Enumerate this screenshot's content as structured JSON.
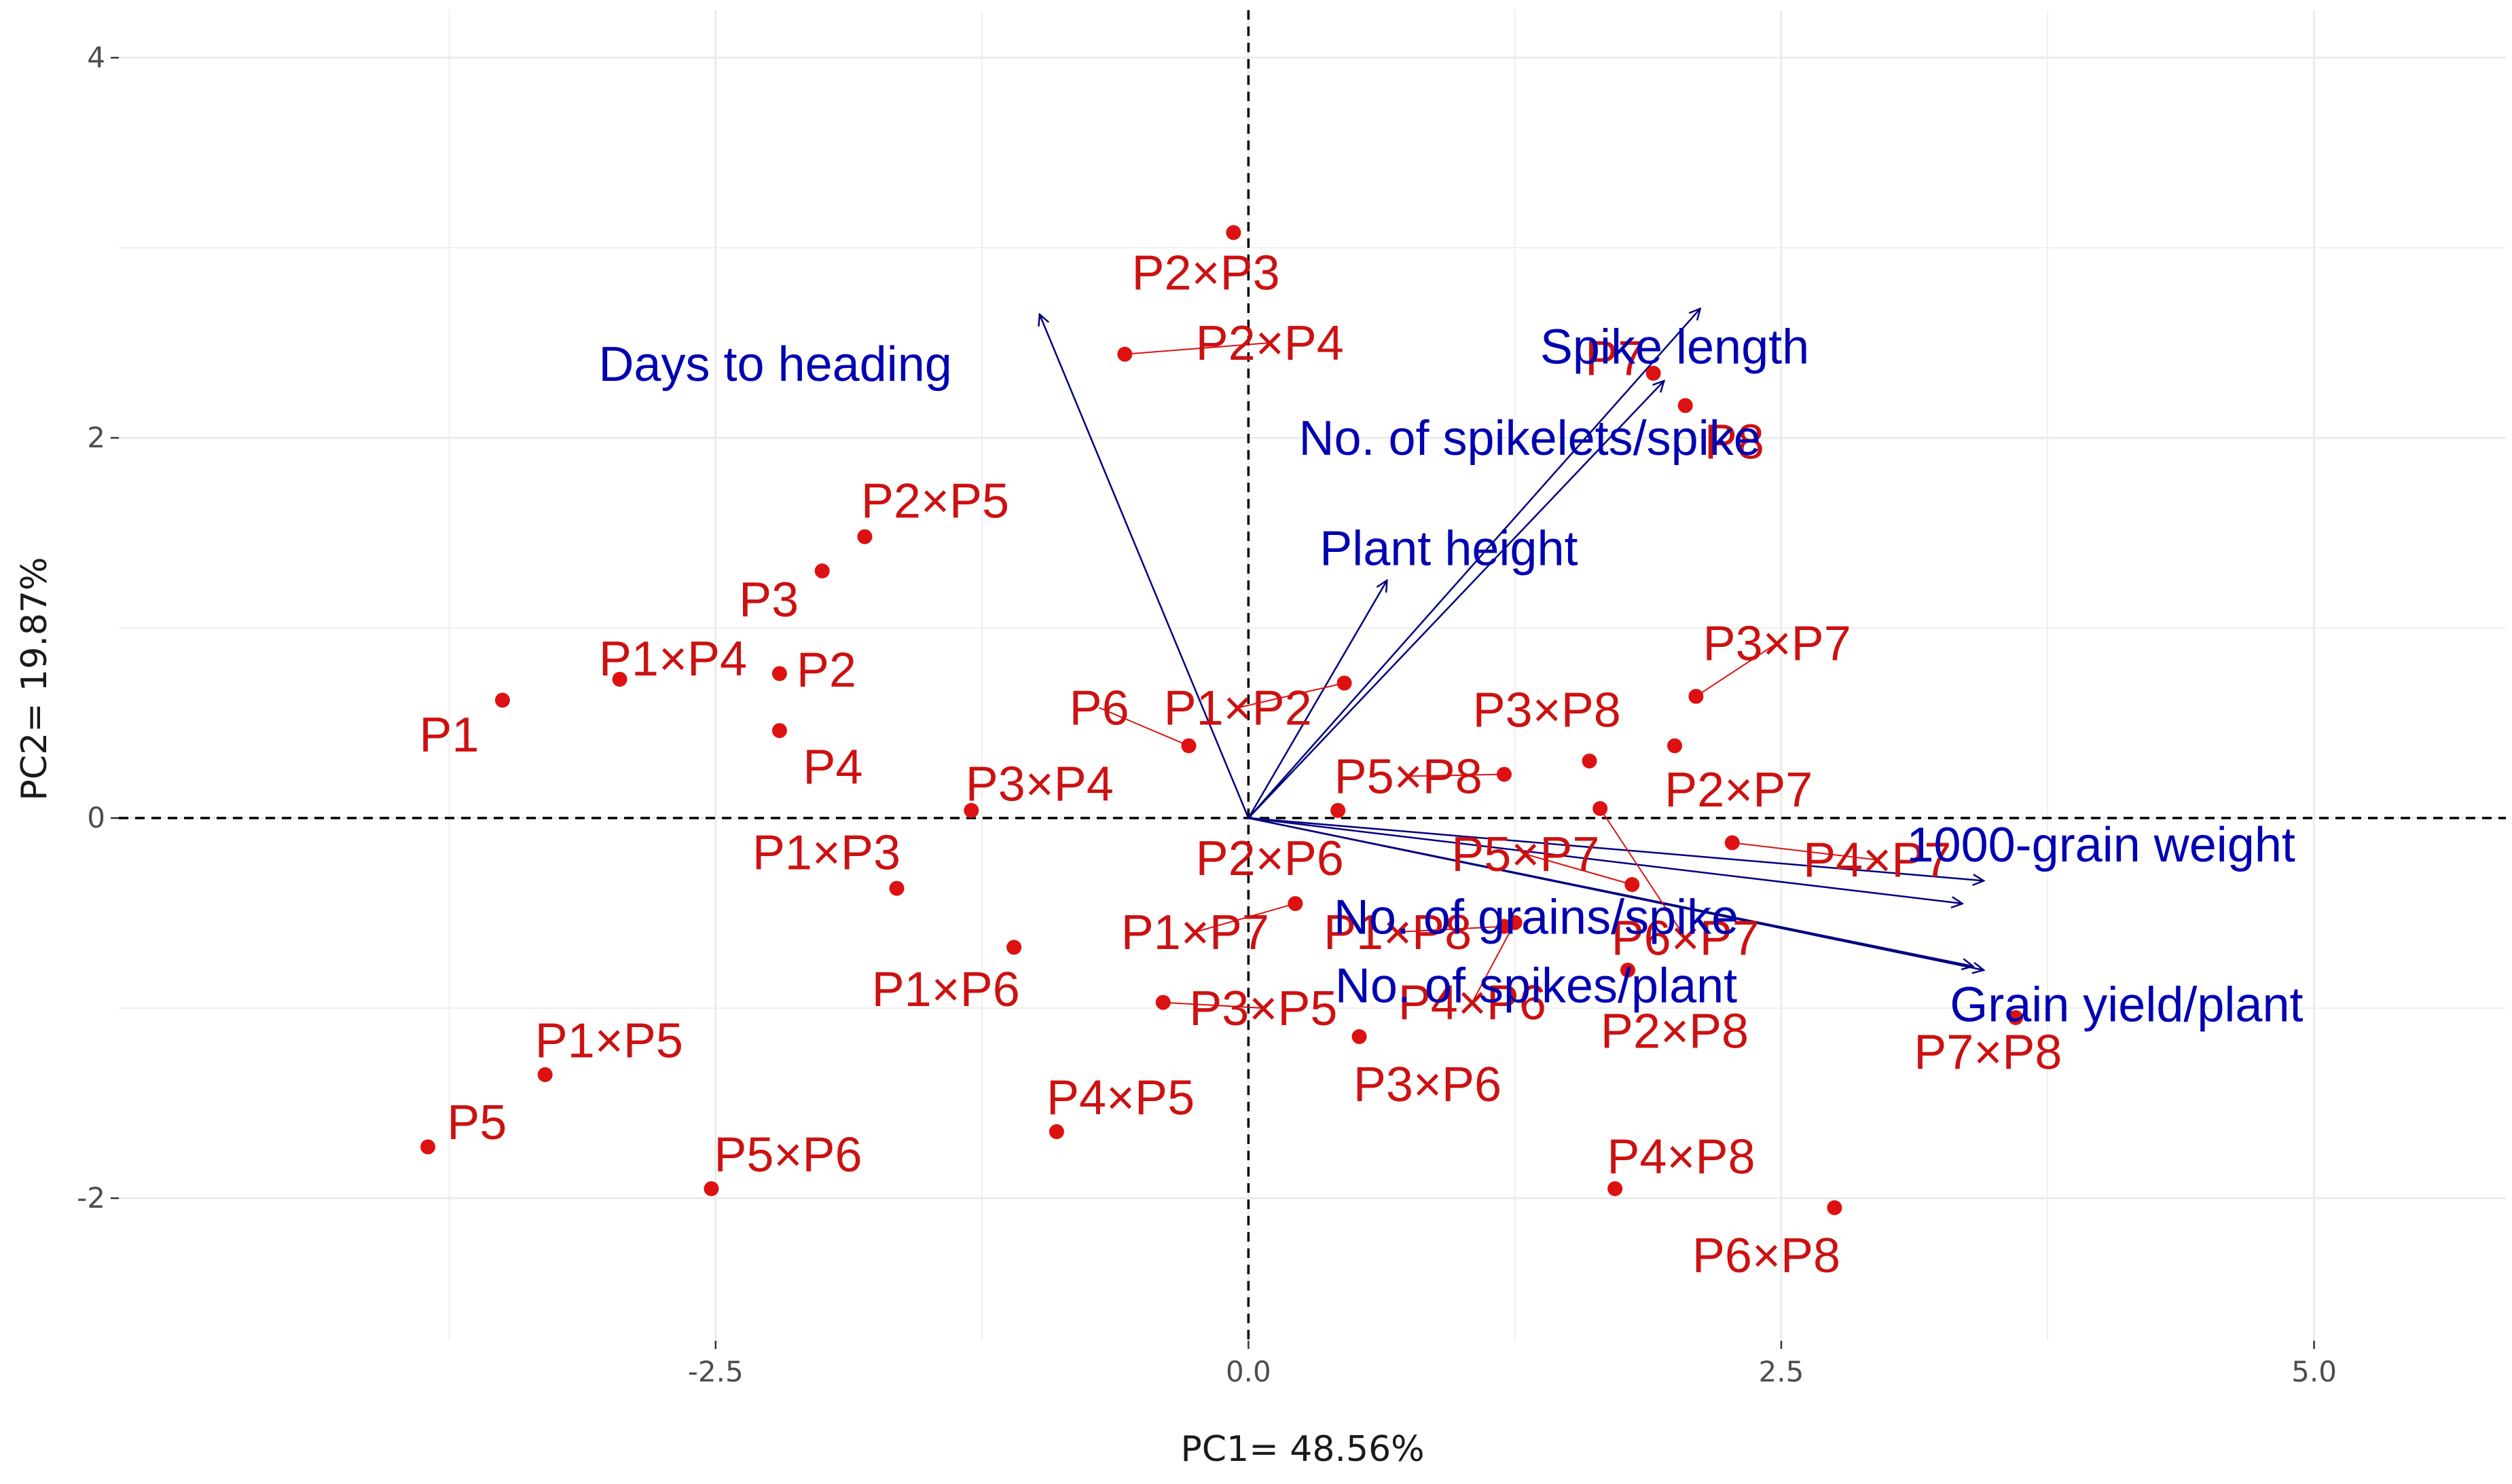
{
  "chart_data": {
    "type": "scatter",
    "subtype": "pca-biplot",
    "title": "",
    "xlabel": "PC1= 48.56%",
    "ylabel": "PC2= 19.87%",
    "xlim": [
      -5.3,
      5.9
    ],
    "ylim": [
      -2.75,
      4.25
    ],
    "xticks": [
      -2.5,
      0.0,
      2.5,
      5.0
    ],
    "xtick_labels": [
      "-2.5",
      "0.0",
      "2.5",
      "5.0"
    ],
    "yticks": [
      -2,
      0,
      2,
      4
    ],
    "ytick_labels": [
      "-2",
      "0",
      "2",
      "4"
    ],
    "grid": true,
    "reference_lines": {
      "x": 0,
      "y": 0,
      "style": "dashed"
    },
    "colors": {
      "points": "#dd1111",
      "point_labels": "#cc1111",
      "vectors": "#000080",
      "vector_labels": "#0000b3",
      "grid": "#ebebeb"
    },
    "points": [
      {
        "label": "P1",
        "x": -3.5,
        "y": 0.62,
        "lx": -3.75,
        "ly": 0.44
      },
      {
        "label": "P2",
        "x": -2.2,
        "y": 0.76,
        "lx": -1.98,
        "ly": 0.78
      },
      {
        "label": "P3",
        "x": -2.0,
        "y": 1.3,
        "lx": -2.25,
        "ly": 1.15
      },
      {
        "label": "P4",
        "x": -2.2,
        "y": 0.46,
        "lx": -1.95,
        "ly": 0.27
      },
      {
        "label": "P5",
        "x": -3.85,
        "y": -1.73,
        "lx": -3.62,
        "ly": -1.6
      },
      {
        "label": "P6",
        "x": -0.28,
        "y": 0.38,
        "lx": -0.7,
        "ly": 0.58
      },
      {
        "label": "P7",
        "x": 1.9,
        "y": 2.34,
        "lx": 1.72,
        "ly": 2.42
      },
      {
        "label": "P8",
        "x": 2.05,
        "y": 2.17,
        "lx": 2.28,
        "ly": 1.98
      },
      {
        "label": "P1×P2",
        "x": 0.45,
        "y": 0.71,
        "lx": -0.05,
        "ly": 0.58
      },
      {
        "label": "P1×P3",
        "x": -1.65,
        "y": -0.37,
        "lx": -1.98,
        "ly": -0.18
      },
      {
        "label": "P1×P4",
        "x": -2.95,
        "y": 0.73,
        "lx": -2.7,
        "ly": 0.84
      },
      {
        "label": "P1×P5",
        "x": -3.3,
        "y": -1.35,
        "lx": -3.0,
        "ly": -1.17
      },
      {
        "label": "P1×P6",
        "x": -1.1,
        "y": -0.68,
        "lx": -1.42,
        "ly": -0.9
      },
      {
        "label": "P1×P7",
        "x": 0.22,
        "y": -0.45,
        "lx": -0.25,
        "ly": -0.6
      },
      {
        "label": "P1×P8",
        "x": 1.2,
        "y": -0.57,
        "lx": 0.7,
        "ly": -0.6
      },
      {
        "label": "P2×P3",
        "x": -0.07,
        "y": 3.08,
        "lx": -0.2,
        "ly": 2.87
      },
      {
        "label": "P2×P4",
        "x": -0.58,
        "y": 2.44,
        "lx": 0.1,
        "ly": 2.5
      },
      {
        "label": "P2×P5",
        "x": -1.8,
        "y": 1.48,
        "lx": -1.47,
        "ly": 1.67
      },
      {
        "label": "P2×P6",
        "x": 0.42,
        "y": 0.04,
        "lx": 0.1,
        "ly": -0.21
      },
      {
        "label": "P2×P7",
        "x": 2.0,
        "y": 0.38,
        "lx": 2.3,
        "ly": 0.15
      },
      {
        "label": "P2×P8",
        "x": 1.78,
        "y": -0.8,
        "lx": 2.0,
        "ly": -1.12
      },
      {
        "label": "P3×P4",
        "x": -1.3,
        "y": 0.04,
        "lx": -0.98,
        "ly": 0.18
      },
      {
        "label": "P3×P5",
        "x": -0.4,
        "y": -0.97,
        "lx": 0.07,
        "ly": -1.0
      },
      {
        "label": "P3×P6",
        "x": 0.52,
        "y": -1.15,
        "lx": 0.84,
        "ly": -1.4
      },
      {
        "label": "P3×P7",
        "x": 2.1,
        "y": 0.64,
        "lx": 2.48,
        "ly": 0.92
      },
      {
        "label": "P3×P8",
        "x": 1.6,
        "y": 0.3,
        "lx": 1.4,
        "ly": 0.57
      },
      {
        "label": "P4×P5",
        "x": -0.9,
        "y": -1.65,
        "lx": -0.6,
        "ly": -1.47
      },
      {
        "label": "P4×P6",
        "x": 1.25,
        "y": -0.55,
        "lx": 1.05,
        "ly": -0.97
      },
      {
        "label": "P4×P7",
        "x": 2.27,
        "y": -0.13,
        "lx": 2.95,
        "ly": -0.22
      },
      {
        "label": "P4×P8",
        "x": 1.72,
        "y": -1.95,
        "lx": 2.03,
        "ly": -1.78
      },
      {
        "label": "P5×P6",
        "x": -2.52,
        "y": -1.95,
        "lx": -2.16,
        "ly": -1.77
      },
      {
        "label": "P5×P7",
        "x": 1.8,
        "y": -0.35,
        "lx": 1.3,
        "ly": -0.19
      },
      {
        "label": "P5×P8",
        "x": 1.2,
        "y": 0.23,
        "lx": 0.75,
        "ly": 0.22
      },
      {
        "label": "P6×P7",
        "x": 1.65,
        "y": 0.05,
        "lx": 2.05,
        "ly": -0.63
      },
      {
        "label": "P6×P8",
        "x": 2.75,
        "y": -2.05,
        "lx": 2.43,
        "ly": -2.3
      },
      {
        "label": "P7×P8",
        "x": 3.6,
        "y": -1.05,
        "lx": 3.47,
        "ly": -1.23
      }
    ],
    "vectors": [
      {
        "label": "Days to heading",
        "x": -0.98,
        "y": 2.65,
        "lx": -2.22,
        "ly": 2.39
      },
      {
        "label": "Spike length",
        "x": 2.12,
        "y": 2.68,
        "lx": 2.0,
        "ly": 2.48
      },
      {
        "label": "No. of spikelets/spike",
        "x": 1.95,
        "y": 2.3,
        "lx": 1.32,
        "ly": 2.0
      },
      {
        "label": "Plant height",
        "x": 0.65,
        "y": 1.25,
        "lx": 0.94,
        "ly": 1.42
      },
      {
        "label": "1000-grain weight",
        "x": 3.45,
        "y": -0.33,
        "lx": 4.0,
        "ly": -0.14
      },
      {
        "label": "No. of grains/spike",
        "x": 3.35,
        "y": -0.45,
        "lx": 1.35,
        "ly": -0.52
      },
      {
        "label": "No. of spikes/plant",
        "x": 3.4,
        "y": -0.78,
        "lx": 1.35,
        "ly": -0.88
      },
      {
        "label": "Grain yield/plant",
        "x": 3.45,
        "y": -0.8,
        "lx": 4.12,
        "ly": -0.98
      }
    ]
  }
}
